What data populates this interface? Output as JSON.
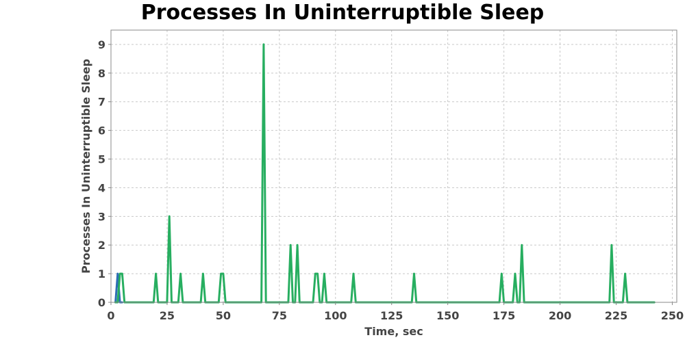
{
  "chart_data": {
    "type": "line",
    "title": "Processes In Uninterruptible Sleep",
    "xlabel": "Time, sec",
    "ylabel": "Processes In Uninterruptible Sleep",
    "xlim": [
      0,
      252
    ],
    "ylim": [
      0,
      9.5
    ],
    "x_ticks": [
      0,
      25,
      50,
      75,
      100,
      125,
      150,
      175,
      200,
      225,
      250
    ],
    "y_ticks": [
      0,
      1,
      2,
      3,
      4,
      5,
      6,
      7,
      8,
      9
    ],
    "grid": true,
    "series": [
      {
        "color": "#2e6eb5",
        "x": [
          2,
          3,
          4,
          5
        ],
        "y": [
          0,
          1,
          0,
          0
        ]
      },
      {
        "color": "#27ae60",
        "x": [
          2,
          3,
          4,
          5,
          6,
          19,
          20,
          21,
          25,
          26,
          27,
          30,
          31,
          32,
          40,
          41,
          42,
          48,
          49,
          50,
          51,
          67,
          68,
          69,
          79,
          80,
          81,
          82,
          83,
          84,
          90,
          91,
          92,
          93,
          94,
          95,
          96,
          107,
          108,
          109,
          134,
          135,
          136,
          173,
          174,
          175,
          179,
          180,
          181,
          182,
          183,
          184,
          222,
          223,
          224,
          228,
          229,
          230,
          242
        ],
        "y": [
          0,
          0,
          1,
          1,
          0,
          0,
          1,
          0,
          0,
          3,
          0,
          0,
          1,
          0,
          0,
          1,
          0,
          0,
          1,
          1,
          0,
          0,
          9,
          0,
          0,
          2,
          0,
          0,
          2,
          0,
          0,
          1,
          1,
          0,
          0,
          1,
          0,
          0,
          1,
          0,
          0,
          1,
          0,
          0,
          1,
          0,
          0,
          1,
          0,
          0,
          2,
          0,
          0,
          2,
          0,
          0,
          1,
          0,
          0
        ]
      }
    ]
  }
}
